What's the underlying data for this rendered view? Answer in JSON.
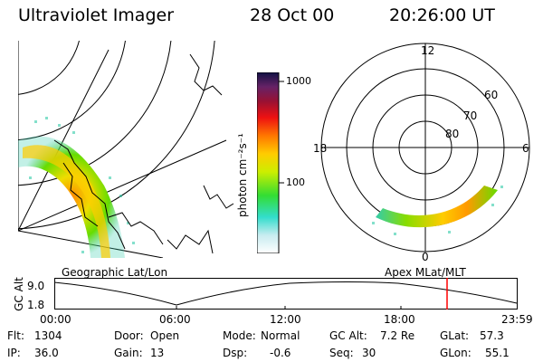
{
  "header": {
    "instrument": "Ultraviolet Imager",
    "date": "28 Oct 00",
    "time": "20:26:00 UT"
  },
  "geo_panel": {
    "label": "Geographic Lat/Lon"
  },
  "polar_panel": {
    "label": "Apex MLat/MLT",
    "mlt_labels": [
      "12",
      "18",
      "6",
      "0"
    ],
    "mlat_labels": [
      "60",
      "70",
      "80"
    ]
  },
  "colorbar": {
    "unit_label": "photon cm⁻²s⁻¹",
    "ticks": [
      "1000",
      "100"
    ]
  },
  "altitude_plot": {
    "ylabel": "GC Alt",
    "yticks": [
      "9.0",
      "1.8"
    ],
    "xticks": [
      "00:00",
      "06:00",
      "12:00",
      "18:00",
      "23:59"
    ]
  },
  "status": {
    "flt_label": "Flt:",
    "flt_value": "1304",
    "ip_label": "IP:",
    "ip_value": "36.0",
    "door_label": "Door:",
    "door_value": "Open",
    "gain_label": "Gain:",
    "gain_value": "13",
    "mode_label": "Mode:",
    "mode_value": "Normal",
    "dsp_label": "Dsp:",
    "dsp_value": "-0.6",
    "gcalt_label": "GC Alt:",
    "gcalt_value": "7.2 Re",
    "seq_label": "Seq:",
    "seq_value": "30",
    "glat_label": "GLat:",
    "glat_value": "57.3",
    "glon_label": "GLon:",
    "glon_value": "55.1"
  }
}
